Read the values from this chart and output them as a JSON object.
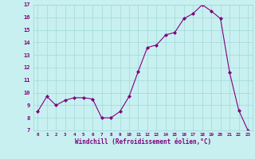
{
  "x": [
    0,
    1,
    2,
    3,
    4,
    5,
    6,
    7,
    8,
    9,
    10,
    11,
    12,
    13,
    14,
    15,
    16,
    17,
    18,
    19,
    20,
    21,
    22,
    23
  ],
  "y": [
    8.5,
    9.7,
    9.0,
    9.4,
    9.6,
    9.6,
    9.5,
    8.0,
    8.0,
    8.5,
    9.7,
    11.7,
    13.6,
    13.8,
    14.6,
    14.8,
    15.9,
    16.3,
    17.0,
    16.5,
    15.9,
    11.6,
    8.6,
    7.0
  ],
  "line_color": "#800080",
  "marker": "D",
  "marker_size": 2,
  "bg_color": "#c8f0f0",
  "grid_color": "#a0d8d8",
  "tick_color": "#800080",
  "label_color": "#800080",
  "xlabel": "Windchill (Refroidissement éolien,°C)",
  "xlim": [
    -0.5,
    23.5
  ],
  "ylim": [
    7,
    17
  ],
  "yticks": [
    7,
    8,
    9,
    10,
    11,
    12,
    13,
    14,
    15,
    16,
    17
  ],
  "xticks": [
    0,
    1,
    2,
    3,
    4,
    5,
    6,
    7,
    8,
    9,
    10,
    11,
    12,
    13,
    14,
    15,
    16,
    17,
    18,
    19,
    20,
    21,
    22,
    23
  ]
}
